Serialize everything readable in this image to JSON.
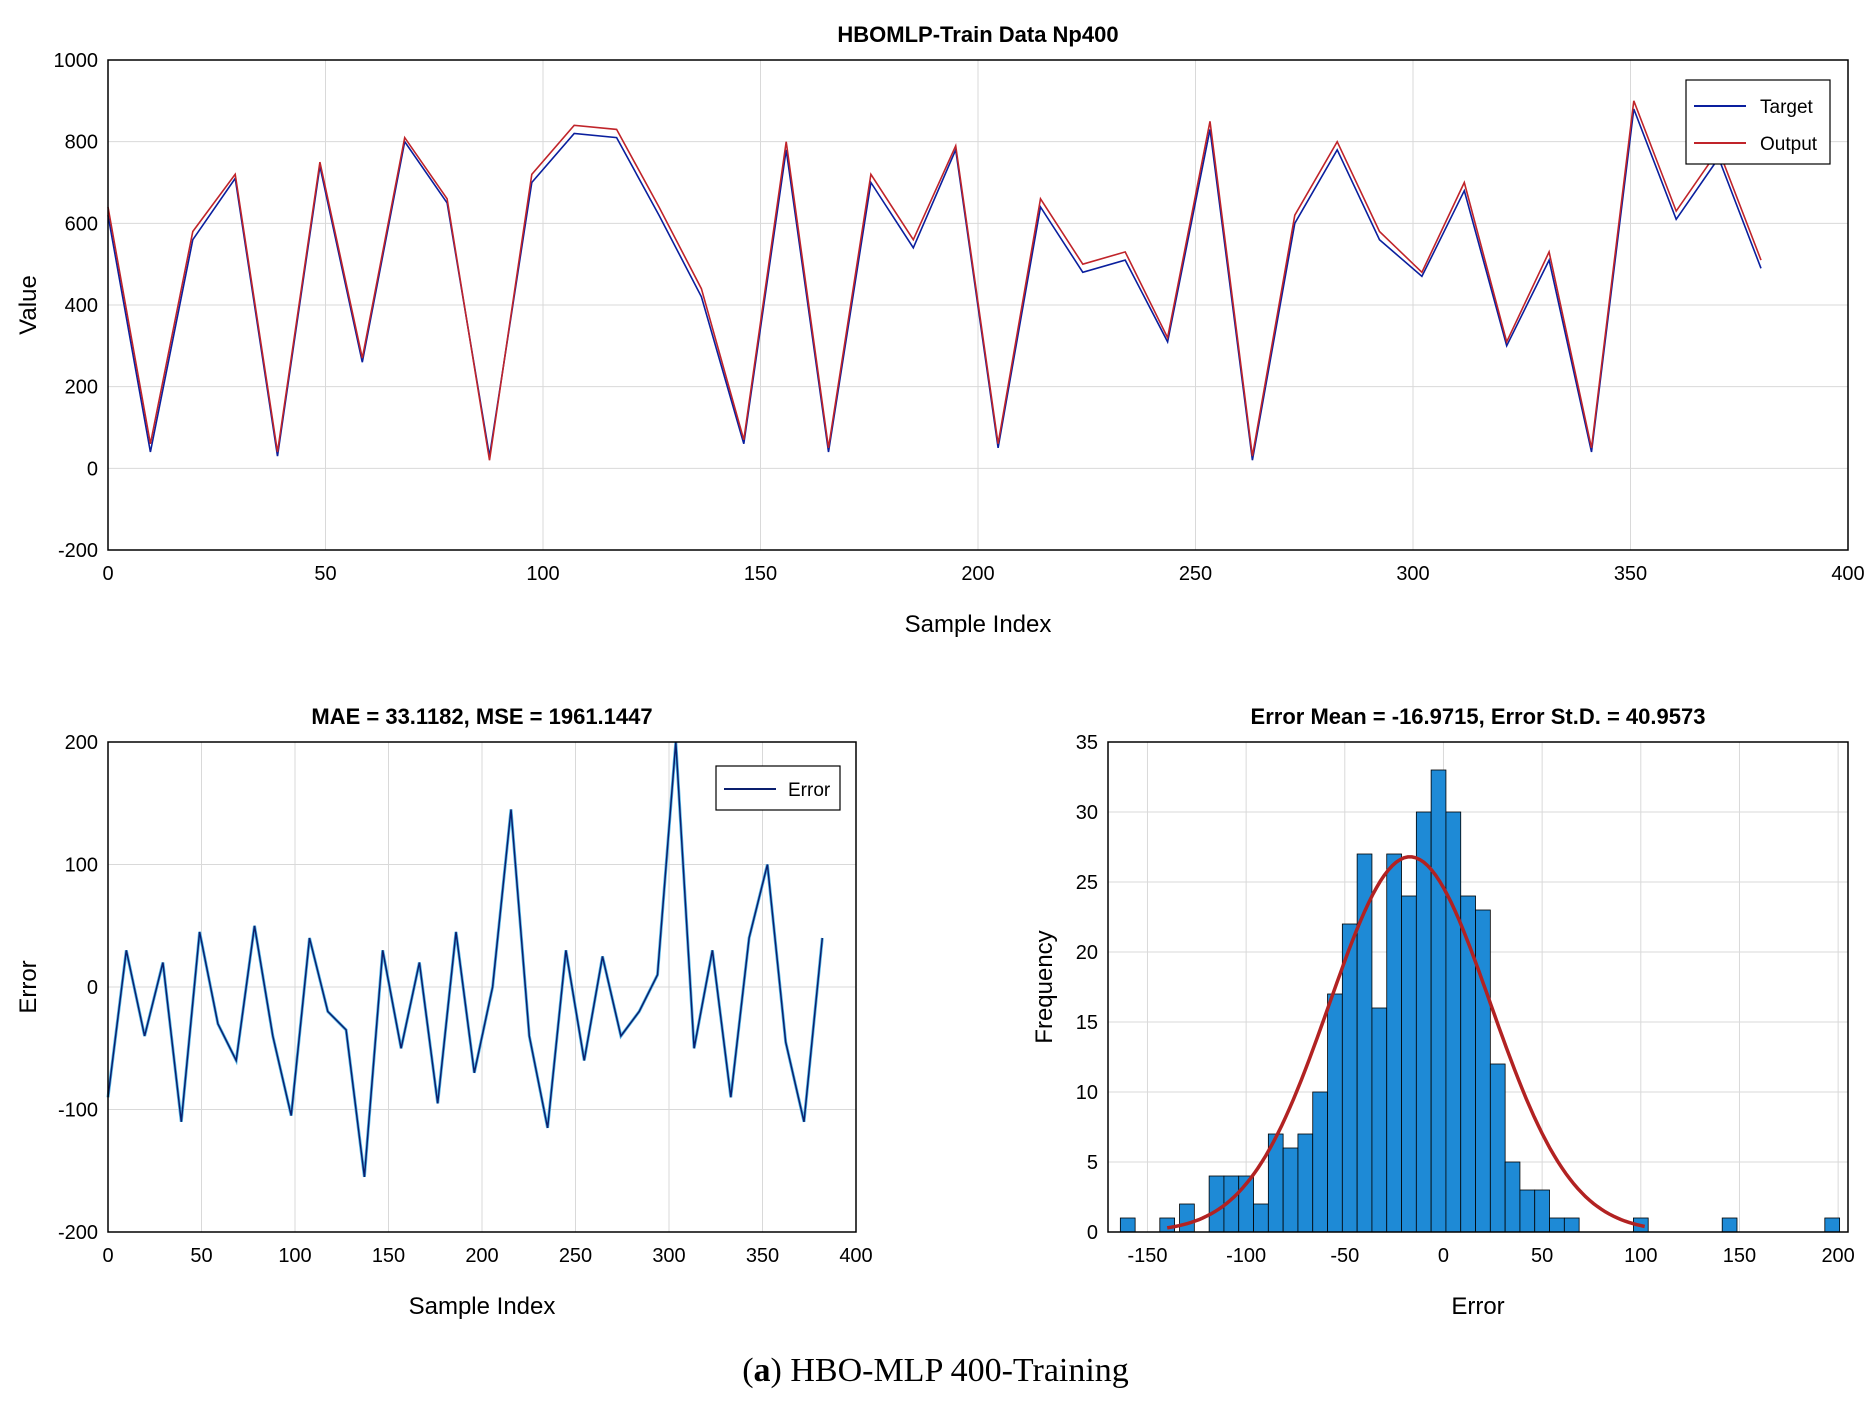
{
  "caption": {
    "prefix": "(",
    "letter": "a",
    "suffix": ")",
    "text": " HBO-MLP 400-Training"
  },
  "chart_data": [
    {
      "id": "top",
      "type": "line",
      "title": "HBOMLP-Train Data Np400",
      "xlabel": "Sample Index",
      "ylabel": "Value",
      "xlim": [
        0,
        400
      ],
      "ylim": [
        -200,
        1000
      ],
      "xticks": [
        0,
        50,
        100,
        150,
        200,
        250,
        300,
        350,
        400
      ],
      "yticks": [
        -200,
        0,
        200,
        400,
        600,
        800,
        1000
      ],
      "grid": true,
      "legend": {
        "position": "top-right",
        "entries": [
          "Target",
          "Output"
        ]
      },
      "colors": {
        "Target": "#0a1f9e",
        "Output": "#c0242a"
      },
      "series": [
        {
          "name": "Target",
          "x_start": 0,
          "x_step": 10,
          "values": [
            620,
            40,
            560,
            710,
            30,
            740,
            260,
            800,
            650,
            30,
            700,
            820,
            810,
            620,
            420,
            60,
            780,
            40,
            700,
            540,
            780,
            50,
            640,
            480,
            510,
            310,
            830,
            20,
            600,
            780,
            560,
            470,
            680,
            300,
            510,
            40,
            880,
            610,
            760,
            490
          ]
        },
        {
          "name": "Output",
          "x_start": 0,
          "x_step": 10,
          "values": [
            640,
            60,
            580,
            720,
            40,
            750,
            270,
            810,
            660,
            20,
            720,
            840,
            830,
            640,
            440,
            70,
            800,
            50,
            720,
            560,
            790,
            60,
            660,
            500,
            530,
            320,
            850,
            30,
            620,
            800,
            580,
            480,
            700,
            310,
            530,
            50,
            900,
            630,
            780,
            510
          ]
        }
      ]
    },
    {
      "id": "error",
      "type": "line",
      "title": "MAE = 33.1182, MSE = 1961.1447",
      "xlabel": "Sample Index",
      "ylabel": "Error",
      "xlim": [
        0,
        400
      ],
      "ylim": [
        -200,
        200
      ],
      "xticks": [
        0,
        50,
        100,
        150,
        200,
        250,
        300,
        350,
        400
      ],
      "yticks": [
        -200,
        -100,
        0,
        100,
        200
      ],
      "grid": true,
      "legend": {
        "position": "top-right",
        "entries": [
          "Error"
        ]
      },
      "colors": {
        "Error": "#0a1f6e",
        "fill": "#55b6e6"
      },
      "series": [
        {
          "name": "Error",
          "x_start": 0,
          "x_step": 10,
          "values": [
            -90,
            30,
            -40,
            20,
            -110,
            45,
            -30,
            -60,
            50,
            -40,
            -105,
            40,
            -20,
            -35,
            -155,
            30,
            -50,
            20,
            -95,
            45,
            -70,
            0,
            145,
            -40,
            -115,
            30,
            -60,
            25,
            -40,
            -20,
            10,
            200,
            -50,
            30,
            -90,
            40,
            100,
            -45,
            -110,
            40
          ]
        }
      ]
    },
    {
      "id": "hist",
      "type": "bar",
      "title": "Error Mean = -16.9715, Error St.D. = 40.9573",
      "xlabel": "Error",
      "ylabel": "Frequency",
      "xlim": [
        -170,
        205
      ],
      "ylim": [
        0,
        35
      ],
      "xticks": [
        -150,
        -100,
        -50,
        0,
        50,
        100,
        150,
        200
      ],
      "yticks": [
        0,
        5,
        10,
        15,
        20,
        25,
        30,
        35
      ],
      "grid": true,
      "colors": {
        "bars": "#1e8ad6",
        "curve": "#b22222"
      },
      "bin_width": 7.5,
      "bins": [
        {
          "x": -160,
          "count": 1
        },
        {
          "x": -140,
          "count": 1
        },
        {
          "x": -130,
          "count": 2
        },
        {
          "x": -115,
          "count": 4
        },
        {
          "x": -107.5,
          "count": 4
        },
        {
          "x": -100,
          "count": 4
        },
        {
          "x": -92.5,
          "count": 2
        },
        {
          "x": -85,
          "count": 7
        },
        {
          "x": -77.5,
          "count": 6
        },
        {
          "x": -70,
          "count": 7
        },
        {
          "x": -62.5,
          "count": 10
        },
        {
          "x": -55,
          "count": 17
        },
        {
          "x": -47.5,
          "count": 22
        },
        {
          "x": -40,
          "count": 27
        },
        {
          "x": -32.5,
          "count": 16
        },
        {
          "x": -25,
          "count": 27
        },
        {
          "x": -17.5,
          "count": 24
        },
        {
          "x": -10,
          "count": 30
        },
        {
          "x": -2.5,
          "count": 33
        },
        {
          "x": 5,
          "count": 30
        },
        {
          "x": 12.5,
          "count": 24
        },
        {
          "x": 20,
          "count": 23
        },
        {
          "x": 27.5,
          "count": 12
        },
        {
          "x": 35,
          "count": 5
        },
        {
          "x": 42.5,
          "count": 3
        },
        {
          "x": 50,
          "count": 3
        },
        {
          "x": 57.5,
          "count": 1
        },
        {
          "x": 65,
          "count": 1
        },
        {
          "x": 100,
          "count": 1
        },
        {
          "x": 145,
          "count": 1
        },
        {
          "x": 197,
          "count": 1
        }
      ],
      "fit": {
        "mean": -16.9715,
        "std": 40.9573,
        "peak": 26.8,
        "range": [
          -140,
          103
        ]
      }
    }
  ]
}
